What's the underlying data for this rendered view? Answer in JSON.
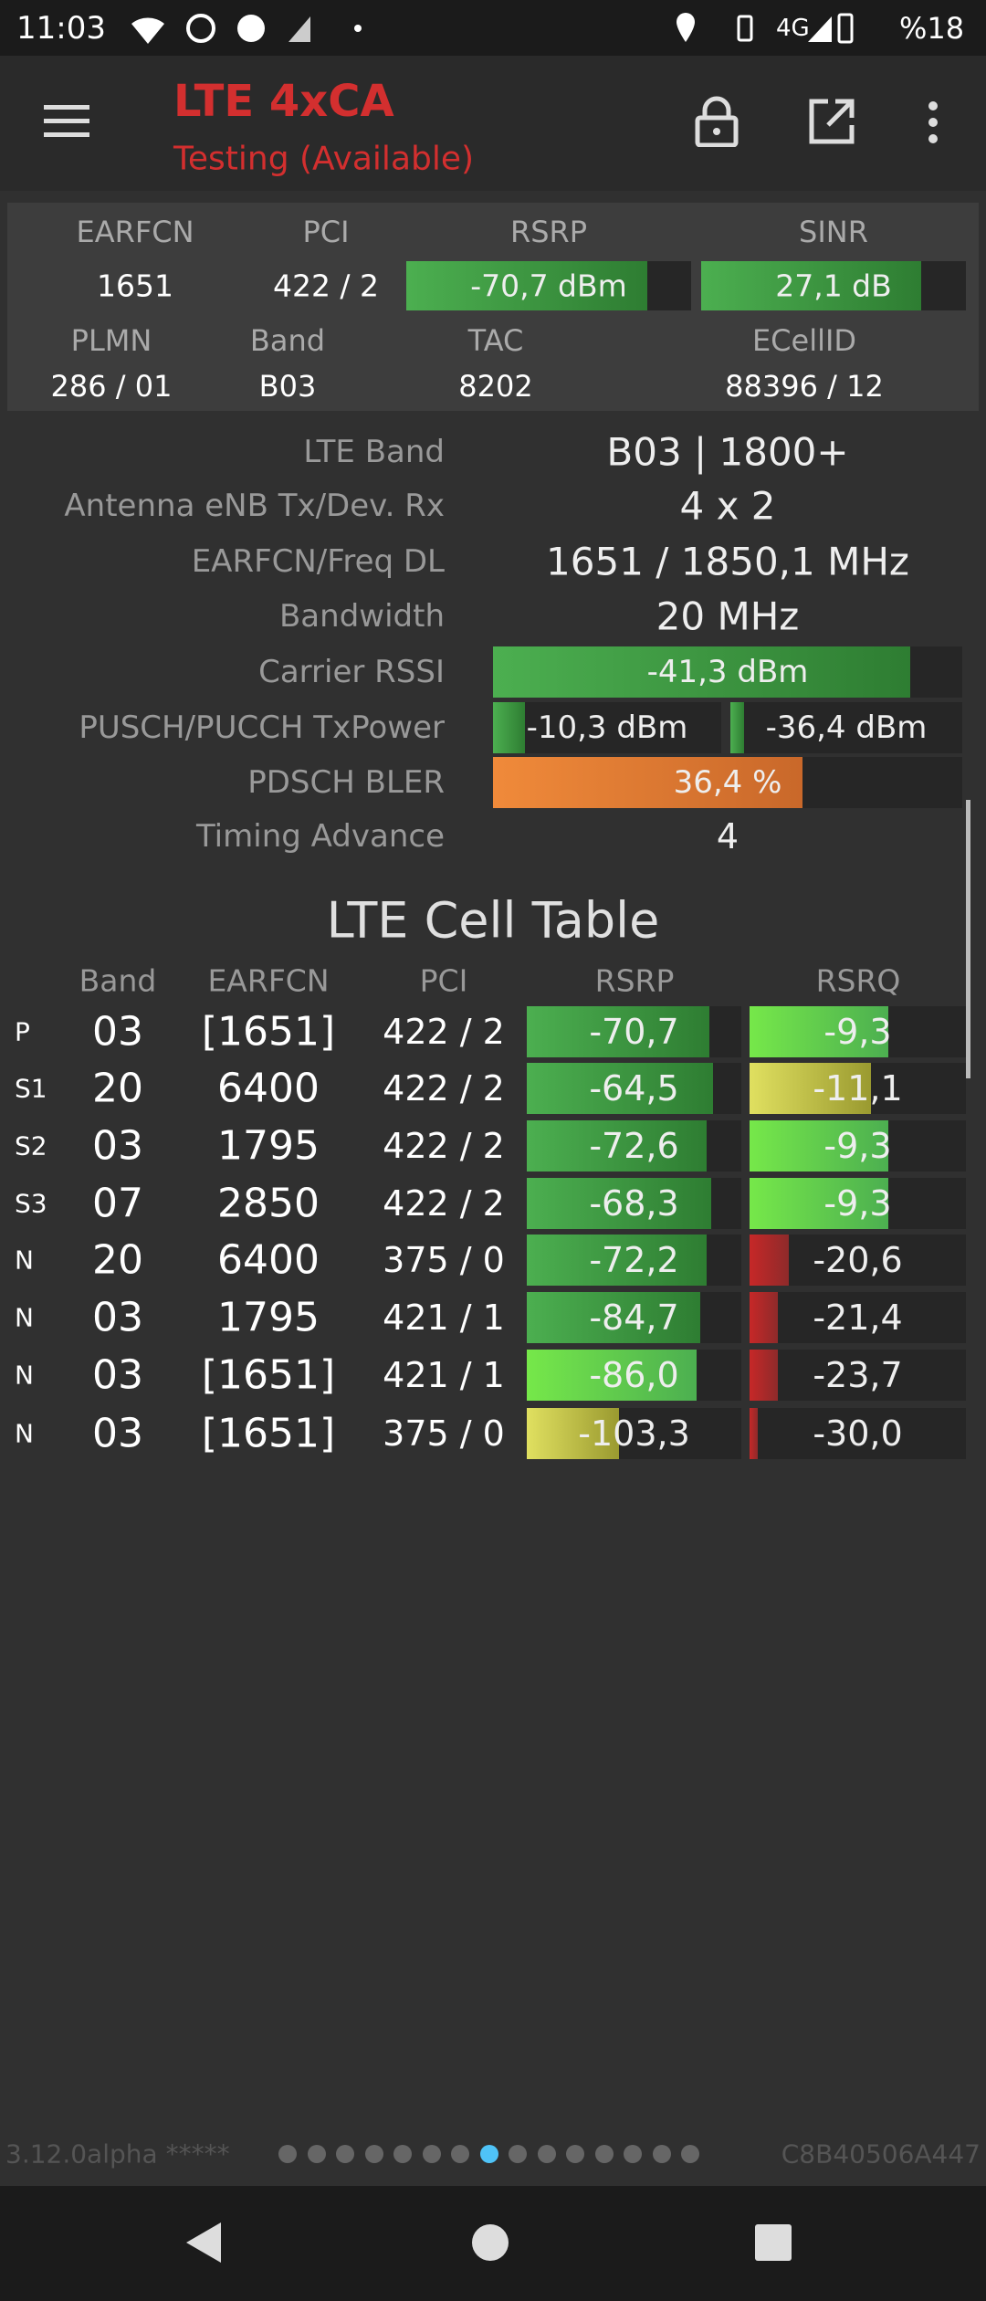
{
  "status_bar": {
    "time": "11:03",
    "network": "4G",
    "battery": "%18"
  },
  "app_bar": {
    "title": "LTE 4xCA",
    "subtitle": "Testing (Available)"
  },
  "summary": {
    "headers_1": [
      "EARFCN",
      "PCI",
      "RSRP",
      "SINR"
    ],
    "values_1": [
      "1651",
      "422 / 2",
      "-70,7 dBm",
      "27,1 dB"
    ],
    "headers_2": [
      "PLMN",
      "Band",
      "TAC",
      "ECellID"
    ],
    "values_2": [
      "286 / 01",
      "B03",
      "8202",
      "88396 / 12"
    ]
  },
  "details": {
    "rows": [
      [
        "LTE Band",
        "B03 | 1800+"
      ],
      [
        "Antenna eNB Tx/Dev. Rx",
        "4 x 2"
      ],
      [
        "EARFCN/Freq DL",
        "1651 / 1850,1 MHz"
      ],
      [
        "Bandwidth",
        "20 MHz"
      ],
      [
        "Carrier RSSI",
        "-41,3 dBm"
      ],
      [
        "PUSCH/PUCCH TxPower",
        "-10,3 dBm",
        "-36,4 dBm"
      ],
      [
        "PDSCH BLER",
        "36,4 %"
      ],
      [
        "Timing Advance",
        "4"
      ]
    ]
  },
  "cell_table": {
    "title": "LTE Cell Table",
    "headers": [
      "Band",
      "EARFCN",
      "PCI",
      "RSRP",
      "RSRQ"
    ],
    "rows": [
      [
        "P",
        "03",
        "[1651]",
        "422 / 2",
        "-70,7",
        "-9,3"
      ],
      [
        "S1",
        "20",
        "6400",
        "422 / 2",
        "-64,5",
        "-11,1"
      ],
      [
        "S2",
        "03",
        "1795",
        "422 / 2",
        "-72,6",
        "-9,3"
      ],
      [
        "S3",
        "07",
        "2850",
        "422 / 2",
        "-68,3",
        "-9,3"
      ],
      [
        "N",
        "20",
        "6400",
        "375 / 0",
        "-72,2",
        "-20,6"
      ],
      [
        "N",
        "03",
        "1795",
        "421 / 1",
        "-84,7",
        "-21,4"
      ],
      [
        "N",
        "03",
        "[1651]",
        "421 / 1",
        "-86,0",
        "-23,7"
      ],
      [
        "N",
        "03",
        "[1651]",
        "375 / 0",
        "-103,3",
        "-30,0"
      ]
    ]
  },
  "footer": {
    "version": "3.12.0alpha *****",
    "device_id": "C8B40506A447"
  }
}
